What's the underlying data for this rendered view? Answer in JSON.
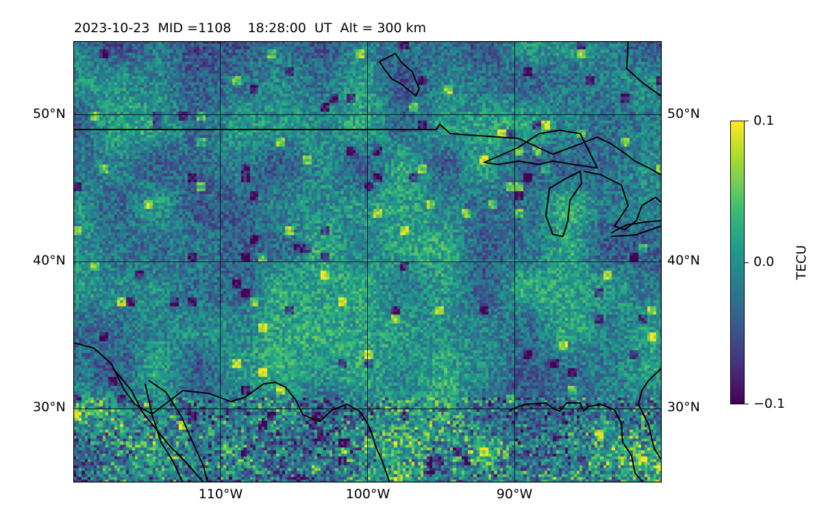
{
  "header": {
    "title": "2023-10-23  MID =1108    18:28:00  UT  Alt = 300 km"
  },
  "map": {
    "projection": "equirectangular",
    "lon_range": [
      -120,
      -80
    ],
    "lat_range": [
      25,
      55
    ],
    "grid": true,
    "field": "TEC perturbation",
    "colormap": "viridis",
    "lat_ticks": [
      {
        "value": 50,
        "label": "50°N"
      },
      {
        "value": 40,
        "label": "40°N"
      },
      {
        "value": 30,
        "label": "30°N"
      }
    ],
    "lon_ticks": [
      {
        "value": -110,
        "label": "110°W"
      },
      {
        "value": -100,
        "label": "100°W"
      },
      {
        "value": -90,
        "label": "90°W"
      }
    ]
  },
  "colorbar": {
    "label": "TECU",
    "min": -0.1,
    "max": 0.1,
    "ticks": [
      {
        "value": 0.1,
        "label": "0.1"
      },
      {
        "value": 0.0,
        "label": "0.0"
      },
      {
        "value": -0.1,
        "label": "−0.1"
      }
    ]
  }
}
